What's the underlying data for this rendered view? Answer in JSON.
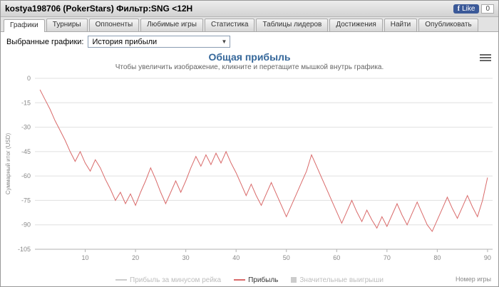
{
  "header": {
    "title": "kostya198706 (PokerStars) Фильтр:SNG <12H",
    "fb_like_label": "Like",
    "fb_like_count": "0"
  },
  "tabs": [
    {
      "label": "Графики",
      "active": true
    },
    {
      "label": "Турниры",
      "active": false
    },
    {
      "label": "Оппоненты",
      "active": false
    },
    {
      "label": "Любимые игры",
      "active": false
    },
    {
      "label": "Статистика",
      "active": false
    },
    {
      "label": "Таблицы лидеров",
      "active": false
    },
    {
      "label": "Достижения",
      "active": false
    },
    {
      "label": "Найти",
      "active": false
    },
    {
      "label": "Опубликовать",
      "active": false
    }
  ],
  "toolbar": {
    "selected_graphs_label": "Выбранные графики:",
    "graph_select_value": "История прибыли"
  },
  "chart_data": {
    "type": "line",
    "title": "Общая прибыль",
    "subtitle": "Чтобы увеличить изображение, кликните и перетащите мышкой внутрь графика.",
    "ylabel": "Суммарный итог (USD)",
    "xlabel": "Номер игры",
    "ylim": [
      -105,
      0
    ],
    "ytick_step": 15,
    "xlim": [
      0,
      91
    ],
    "xticks": [
      10,
      20,
      30,
      40,
      50,
      60,
      70,
      80,
      90
    ],
    "grid": true,
    "legend_position": "bottom",
    "colors": {
      "grid": "#e0e0e0",
      "axis": "#b0b0b0",
      "tick_label": "#888888",
      "title": "#35679A"
    },
    "series": [
      {
        "name": "Прибыль за минусом рейка",
        "color": "#cccccc",
        "enabled": false,
        "marker": "line",
        "x_start": 1,
        "values": []
      },
      {
        "name": "Прибыль",
        "color": "#d96a6a",
        "enabled": true,
        "marker": "line",
        "x_start": 1,
        "values": [
          -7,
          -13,
          -19,
          -26,
          -32,
          -38,
          -45,
          -51,
          -45,
          -52,
          -57,
          -50,
          -55,
          -62,
          -68,
          -75,
          -70,
          -77,
          -71,
          -78,
          -70,
          -63,
          -55,
          -62,
          -70,
          -77,
          -70,
          -63,
          -70,
          -63,
          -55,
          -48,
          -54,
          -47,
          -53,
          -46,
          -52,
          -45,
          -52,
          -58,
          -65,
          -72,
          -65,
          -72,
          -78,
          -71,
          -64,
          -71,
          -78,
          -85,
          -78,
          -71,
          -64,
          -57,
          -47,
          -54,
          -61,
          -68,
          -75,
          -82,
          -89,
          -82,
          -75,
          -82,
          -88,
          -81,
          -87,
          -92,
          -85,
          -91,
          -84,
          -77,
          -84,
          -90,
          -83,
          -76,
          -83,
          -90,
          -94,
          -87,
          -80,
          -73,
          -80,
          -86,
          -79,
          -72,
          -79,
          -85,
          -75,
          -61
        ]
      },
      {
        "name": "Значительные выигрыши",
        "color": "#cccccc",
        "enabled": false,
        "marker": "square",
        "x_start": 1,
        "values": []
      }
    ]
  }
}
